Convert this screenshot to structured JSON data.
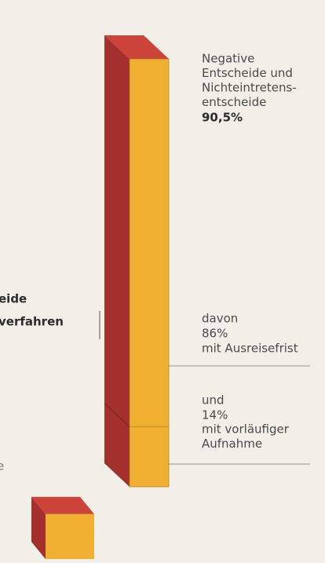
{
  "chart_data": {
    "type": "bar",
    "bars": [
      {
        "label": [
          "Negative",
          "Entscheide und",
          "Nichteintretens-",
          "entscheide"
        ],
        "value": 90.5,
        "value_label": "90,5%",
        "segments": [
          {
            "label": "davon",
            "value": 86,
            "value_label": "86%",
            "note": "mit Ausreisefrist"
          },
          {
            "label": "und",
            "value": 14,
            "value_label": "14%",
            "note": [
              "mit vorläufiger",
              "Aufnahme"
            ]
          }
        ]
      },
      {
        "value": 9.5
      }
    ],
    "cut_labels": [
      "eide",
      "verfahren",
      "e"
    ],
    "colors": {
      "front": "#efb032",
      "side": "#a3302d",
      "top": "#cc433a"
    }
  }
}
